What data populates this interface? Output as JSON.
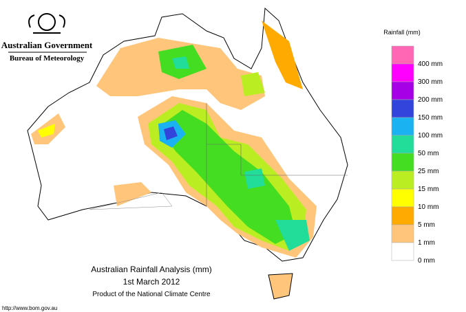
{
  "header": {
    "government": "Australian Government",
    "bureau": "Bureau of Meteorology"
  },
  "legend": {
    "title": "Rainfall (mm)",
    "items": [
      {
        "label": "400 mm",
        "color": "#ff66b3"
      },
      {
        "label": "300 mm",
        "color": "#ff00ff"
      },
      {
        "label": "200 mm",
        "color": "#a600e6"
      },
      {
        "label": "150 mm",
        "color": "#3344dd"
      },
      {
        "label": "100 mm",
        "color": "#1ab2f0"
      },
      {
        "label": "50 mm",
        "color": "#22dd99"
      },
      {
        "label": "25 mm",
        "color": "#44dd22"
      },
      {
        "label": "15 mm",
        "color": "#bbee22"
      },
      {
        "label": "10 mm",
        "color": "#ffff00"
      },
      {
        "label": "5 mm",
        "color": "#ffaa00"
      },
      {
        "label": "1 mm",
        "color": "#ffc57a"
      },
      {
        "label": "0 mm",
        "color": "#ffffff"
      }
    ]
  },
  "title": {
    "line1": "Australian Rainfall Analysis (mm)",
    "line2": "1st March 2012",
    "line3": "Product of the National Climate Centre"
  },
  "footer": "http://www.bom.gov.au"
}
